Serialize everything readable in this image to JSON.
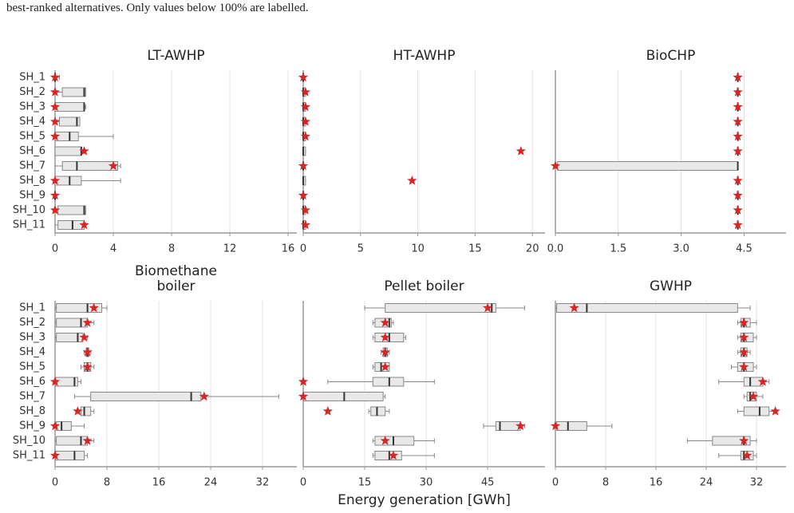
{
  "caption": "best-ranked alternatives. Only values below 100% are labelled.",
  "chart_data": [
    {
      "type": "box",
      "title": "LT-AWHP",
      "categories": [
        "SH_1",
        "SH_2",
        "SH_3",
        "SH_4",
        "SH_5",
        "SH_6",
        "SH_7",
        "SH_8",
        "SH_9",
        "SH_10",
        "SH_11"
      ],
      "whisker_low": [
        0,
        0,
        0,
        0,
        0,
        0,
        0,
        0,
        0,
        0,
        0
      ],
      "q1": [
        0,
        0.5,
        0,
        0.3,
        0,
        0,
        0.5,
        0,
        0,
        0.2,
        0.2
      ],
      "median": [
        0,
        2,
        2,
        1.5,
        1,
        1.8,
        1.5,
        1,
        0,
        2,
        1.2
      ],
      "q3": [
        0,
        2.1,
        2,
        1.7,
        1.6,
        1.8,
        4.3,
        1.8,
        0,
        2.1,
        2
      ],
      "whisker_high": [
        0.3,
        2.1,
        2.1,
        1.7,
        4,
        2,
        4.5,
        4.5,
        0,
        2.1,
        2.1
      ],
      "star": [
        0,
        0,
        0,
        0,
        0,
        2,
        4,
        0,
        0,
        0,
        2
      ],
      "star_color": "#d62728",
      "xlim": [
        0,
        16.6
      ],
      "xticks": [
        0,
        4,
        8,
        12,
        16
      ],
      "grid": true
    },
    {
      "type": "box",
      "title": "HT-AWHP",
      "whisker_low": [
        0,
        0,
        0,
        0,
        0,
        0,
        0,
        0,
        0,
        0,
        0
      ],
      "q1": [
        0,
        0,
        0,
        0,
        0,
        0,
        0,
        0,
        0,
        0,
        0
      ],
      "median": [
        0,
        0,
        0,
        0,
        0,
        0,
        0,
        0,
        0,
        0,
        0
      ],
      "q3": [
        0,
        0.2,
        0.2,
        0.2,
        0.2,
        0.2,
        0,
        0.2,
        0,
        0.2,
        0.2
      ],
      "whisker_high": [
        0,
        0.2,
        0.2,
        0.2,
        0.2,
        0.2,
        0,
        0.2,
        0,
        0.2,
        0.2
      ],
      "star": [
        0,
        0.2,
        0.2,
        0.2,
        0.2,
        19,
        0,
        9.5,
        0,
        0.2,
        0.2
      ],
      "star_color": "#d62728",
      "xlim": [
        0,
        21.1
      ],
      "xticks": [
        0,
        5,
        10,
        15,
        20
      ],
      "grid": true
    },
    {
      "type": "box",
      "title": "BioCHP",
      "whisker_low": [
        4.35,
        4.35,
        4.35,
        4.35,
        4.35,
        4.35,
        0,
        4.35,
        4.35,
        4.35,
        4.35
      ],
      "q1": [
        4.35,
        4.35,
        4.35,
        4.35,
        4.35,
        4.35,
        0.05,
        4.35,
        4.35,
        4.35,
        4.35
      ],
      "median": [
        4.35,
        4.35,
        4.35,
        4.35,
        4.35,
        4.35,
        4.35,
        4.35,
        4.35,
        4.35,
        4.35
      ],
      "q3": [
        4.35,
        4.35,
        4.35,
        4.35,
        4.35,
        4.35,
        4.35,
        4.35,
        4.35,
        4.35,
        4.35
      ],
      "whisker_high": [
        4.35,
        4.35,
        4.35,
        4.35,
        4.35,
        4.35,
        4.35,
        4.35,
        4.35,
        4.35,
        4.35
      ],
      "star": [
        4.35,
        4.35,
        4.35,
        4.35,
        4.35,
        4.35,
        0,
        4.35,
        4.35,
        4.35,
        4.35
      ],
      "star_color": "#d62728",
      "xlim": [
        0,
        5.5
      ],
      "xticks": [
        {
          "value": 0,
          "label": "0.0"
        },
        1.5,
        {
          "value": 3,
          "label": "3.0"
        },
        4.5
      ],
      "grid": true
    },
    {
      "type": "box",
      "title": "Biomethane boiler",
      "categories": [
        "SH_1",
        "SH_2",
        "SH_3",
        "SH_4",
        "SH_5",
        "SH_6",
        "SH_7",
        "SH_8",
        "SH_9",
        "SH_10",
        "SH_11"
      ],
      "whisker_low": [
        0,
        0,
        0,
        4.5,
        4,
        0,
        3,
        3.5,
        0,
        0,
        0
      ],
      "q1": [
        0.2,
        0.2,
        0.2,
        4.8,
        4.5,
        0.1,
        5.5,
        4,
        0.2,
        0.2,
        0.1
      ],
      "median": [
        5,
        4,
        3.5,
        5,
        5,
        3,
        21,
        4.5,
        1,
        4,
        3
      ],
      "q3": [
        7.2,
        5,
        4.3,
        5.2,
        5.5,
        3.5,
        22.5,
        5.5,
        2.5,
        5,
        4.5
      ],
      "whisker_high": [
        8,
        6,
        5,
        5.5,
        6,
        4,
        34.5,
        6,
        4.5,
        6,
        5
      ],
      "star": [
        6,
        5,
        4.5,
        5,
        5,
        0,
        23,
        3.5,
        0,
        5,
        0
      ],
      "star_color": "#d62728",
      "xlim": [
        0,
        37.3
      ],
      "xticks": [
        0,
        8,
        16,
        24,
        32
      ],
      "grid": true
    },
    {
      "type": "box",
      "title": "Pellet boiler",
      "xlabel": "Energy generation [GWh]",
      "whisker_low": [
        15,
        17,
        17,
        19,
        17,
        6,
        0,
        16,
        44,
        17,
        17
      ],
      "q1": [
        20,
        17.5,
        17.5,
        19.5,
        17.5,
        17,
        0.1,
        16.5,
        47,
        17.5,
        17.5
      ],
      "median": [
        46,
        21,
        21,
        20,
        19,
        21,
        10,
        18,
        48,
        22,
        21
      ],
      "q3": [
        47,
        21.5,
        24.5,
        20.5,
        21,
        24.5,
        19.5,
        20,
        53,
        27,
        24
      ],
      "whisker_high": [
        54,
        22,
        25,
        21,
        21,
        32,
        20,
        21,
        54,
        32,
        32
      ],
      "star": [
        45,
        20,
        20,
        20,
        20,
        0,
        0,
        6,
        53,
        20,
        22
      ],
      "star_color": "#d62728",
      "xlim": [
        0,
        59
      ],
      "xticks": [
        0,
        15,
        30,
        45
      ],
      "grid": true
    },
    {
      "type": "box",
      "title": "GWHP",
      "whisker_low": [
        0,
        29,
        29,
        29,
        28,
        26,
        30,
        29,
        0,
        21,
        26
      ],
      "q1": [
        0.2,
        29.5,
        29.5,
        29.5,
        29,
        30,
        30.5,
        30,
        0.2,
        25,
        29.5
      ],
      "median": [
        5,
        30,
        30,
        30,
        30,
        31,
        31,
        32.5,
        2,
        30,
        30
      ],
      "q3": [
        29,
        31,
        31.5,
        30.5,
        31.5,
        33,
        32,
        34,
        5,
        31,
        31.5
      ],
      "whisker_high": [
        31,
        32,
        32,
        31,
        32,
        34,
        33,
        35,
        9,
        32,
        32
      ],
      "star": [
        3,
        30,
        30,
        30,
        30,
        33,
        31.5,
        35,
        0,
        30,
        30.5
      ],
      "star_color": "#d62728",
      "xlim": [
        0,
        36.7
      ],
      "xticks": [
        0,
        8,
        16,
        24,
        32
      ],
      "grid": true
    }
  ]
}
